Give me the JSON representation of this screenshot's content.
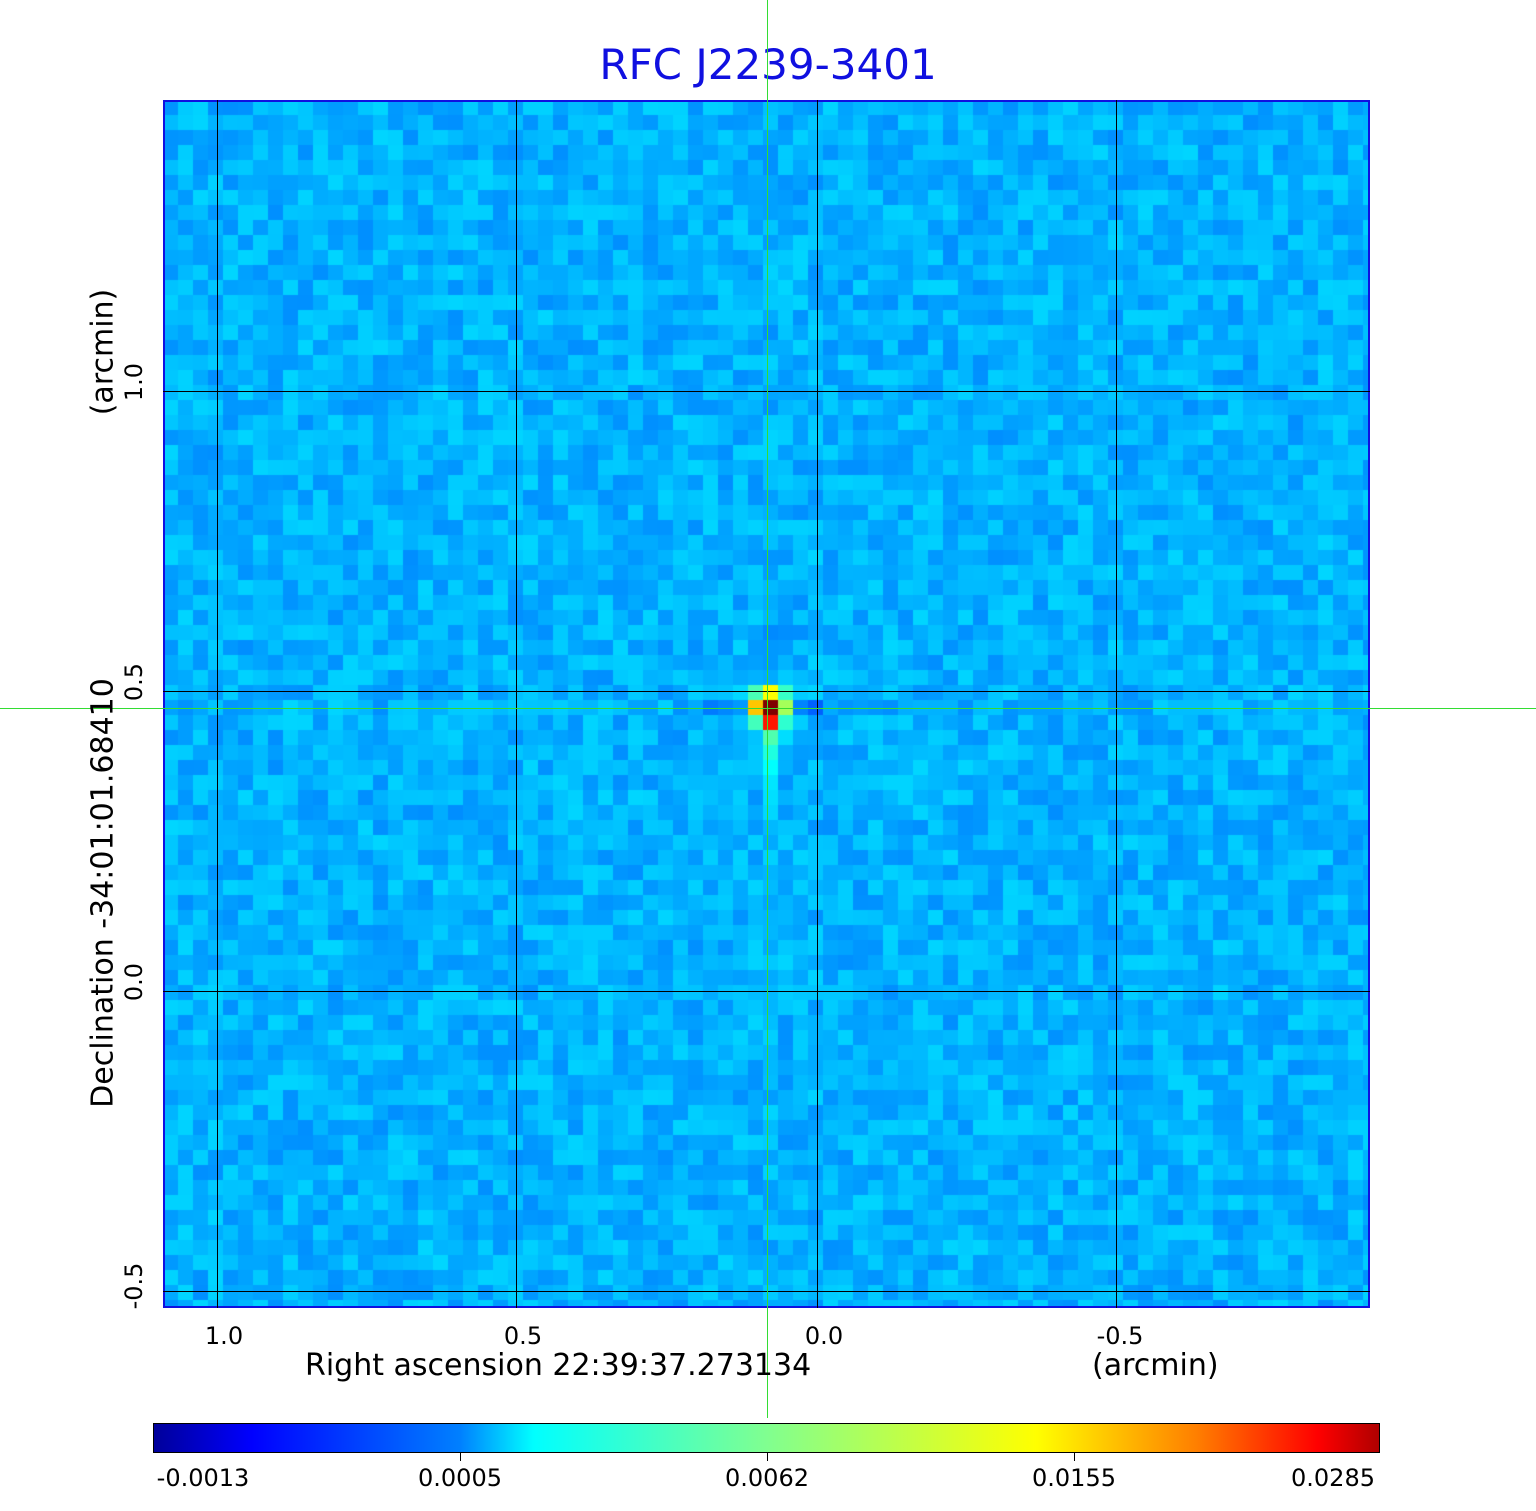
{
  "chart_data": {
    "type": "heatmap",
    "title": "RFC J2239-3401",
    "xlabel": "Right ascension  22:39:37.273134",
    "xunit": "(arcmin)",
    "ylabel": "Declination  -34:01:01.68410",
    "yunit": "(arcmin)",
    "xlim": [
      1.09,
      -0.92
    ],
    "ylim": [
      -0.53,
      1.48
    ],
    "x_ticks": [
      "1.0",
      "0.5",
      "0.0",
      "-0.5"
    ],
    "y_ticks": [
      "1.0",
      "0.5",
      "0.0",
      "-0.5"
    ],
    "grid": true,
    "colormap": "jet",
    "colorbar": {
      "ticks": [
        "-0.0013",
        "0.0005",
        "0.0062",
        "0.0155",
        "0.0285"
      ],
      "range": [
        -0.0013,
        0.0285
      ],
      "placement": "bottom"
    },
    "peak": {
      "x": 0.08,
      "y": 0.47,
      "value": 0.0285
    },
    "crosshair_color": "#33dd33",
    "frame_color": "#1010e0",
    "title_color": "#1010e0"
  }
}
